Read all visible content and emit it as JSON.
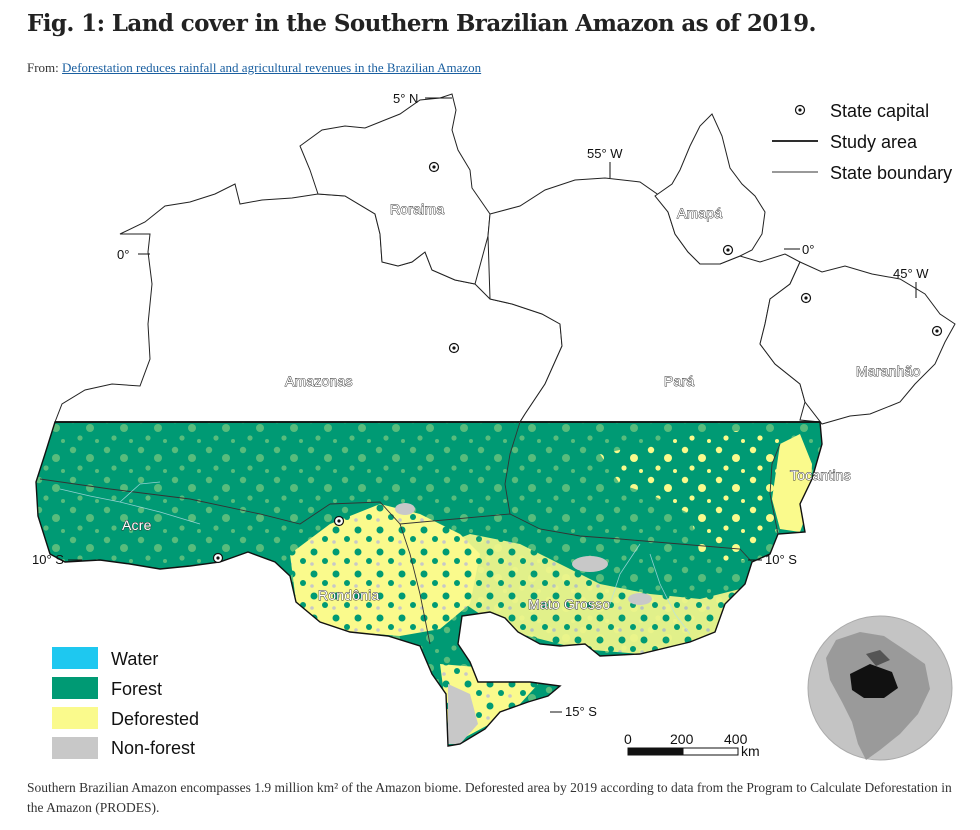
{
  "figure": {
    "title": "Fig. 1: Land cover in the Southern Brazilian Amazon as of 2019.",
    "from_prefix": "From: ",
    "from_link": "Deforestation reduces rainfall and agricultural revenues in the Brazilian Amazon",
    "caption": "Southern Brazilian Amazon encompasses 1.9 million km² of the Amazon biome. Deforested area by 2019 according to data from the Program to Calculate Deforestation in the Amazon (PRODES)."
  },
  "map": {
    "states": {
      "roraima": "Roraima",
      "amapa": "Amapá",
      "amazonas": "Amazonas",
      "para": "Pará",
      "maranhao": "Maranhão",
      "tocantins": "Tocantins",
      "acre": "Acre",
      "rondonia": "Rondônia",
      "mato_grosso": "Mato Grosso"
    },
    "coordinates": {
      "lat_5n": "5° N",
      "lat_0_left": "0°",
      "lat_0_right": "0°",
      "lat_10s_left": "10° S",
      "lat_10s_right": "10° S",
      "lat_15s": "15° S",
      "lon_55w": "55° W",
      "lon_45w": "45° W"
    },
    "top_legend": {
      "state_capital": "State capital",
      "study_area": "Study area",
      "state_boundary": "State boundary"
    },
    "land_cover_legend": [
      {
        "label": "Water",
        "color": "#1ec8f0"
      },
      {
        "label": "Forest",
        "color": "#009a74"
      },
      {
        "label": "Deforested",
        "color": "#fafa8c"
      },
      {
        "label": "Non-forest",
        "color": "#c8c8c8"
      }
    ],
    "scale_bar": {
      "tick_0": "0",
      "tick_200": "200",
      "tick_400": "400",
      "unit": "km"
    }
  }
}
